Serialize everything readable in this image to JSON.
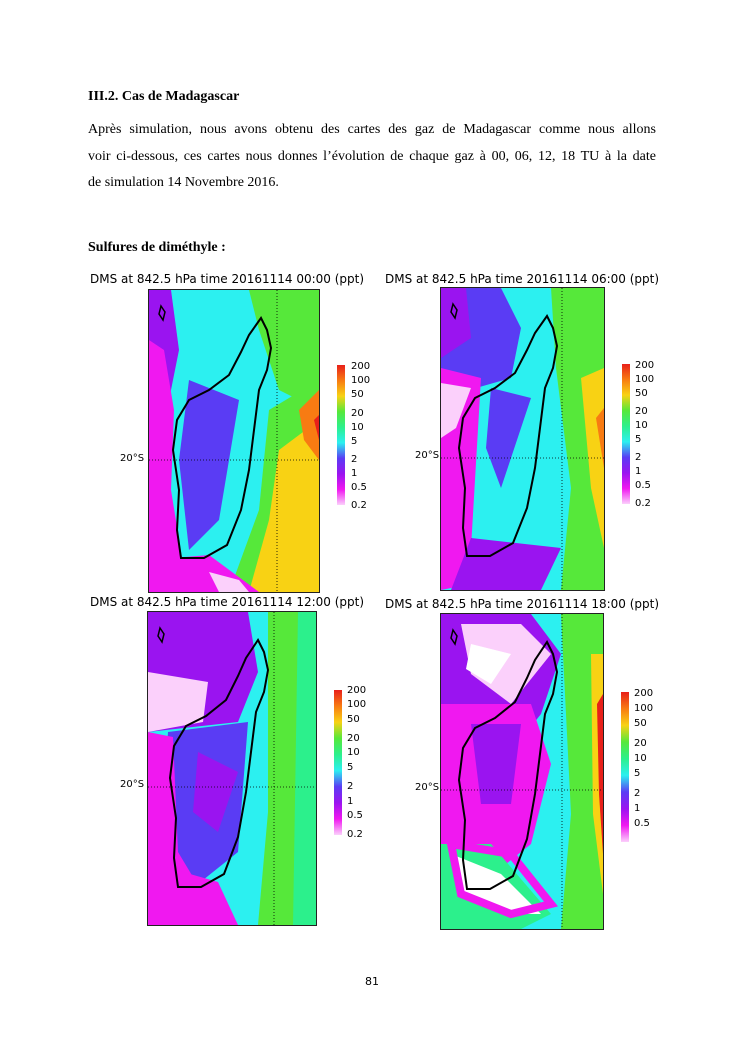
{
  "heading": "III.2. Cas de Madagascar",
  "paragraph_lines": [
    "Après simulation, nous avons obtenu des cartes des gaz de Madagascar comme nous allons",
    "voir ci-dessous, ces cartes nous donnes l’évolution de chaque gaz à 00, 06, 12, 18 TU à la date",
    "de simulation 14 Novembre 2016."
  ],
  "subheading": "Sulfures de diméthyle :",
  "panels": [
    {
      "title": "DMS at 842.5 hPa time 20161114 00:00 (ppt)",
      "lat_label": "20°S",
      "colorbar_labels": [
        "200",
        "100",
        "50",
        "20",
        "10",
        "5",
        "2",
        "1",
        "0.5",
        "0.2"
      ]
    },
    {
      "title": "DMS at 842.5 hPa time 20161114 06:00 (ppt)",
      "lat_label": "20°S",
      "colorbar_labels": [
        "200",
        "100",
        "50",
        "20",
        "10",
        "5",
        "2",
        "1",
        "0.5",
        "0.2"
      ]
    },
    {
      "title": "DMS at 842.5 hPa time 20161114 12:00 (ppt)",
      "lat_label": "20°S",
      "colorbar_labels": [
        "200",
        "100",
        "50",
        "20",
        "10",
        "5",
        "2",
        "1",
        "0.5",
        "0.2"
      ]
    },
    {
      "title": "DMS at 842.5 hPa time 20161114 18:00 (ppt)",
      "lat_label": "20°S",
      "colorbar_labels": [
        "200",
        "100",
        "50",
        "20",
        "10",
        "5",
        "2",
        "1",
        "0.5"
      ]
    }
  ],
  "colors": {
    "c200": "#e8201a",
    "c100": "#f87b12",
    "c50": "#f8d214",
    "c20": "#56e83a",
    "c10": "#2cf08c",
    "c5": "#2cf0f0",
    "c2": "#5a3cf4",
    "c1": "#9a14f0",
    "c05": "#f018f0",
    "c02": "#fbd0fb"
  },
  "page_number": "81"
}
